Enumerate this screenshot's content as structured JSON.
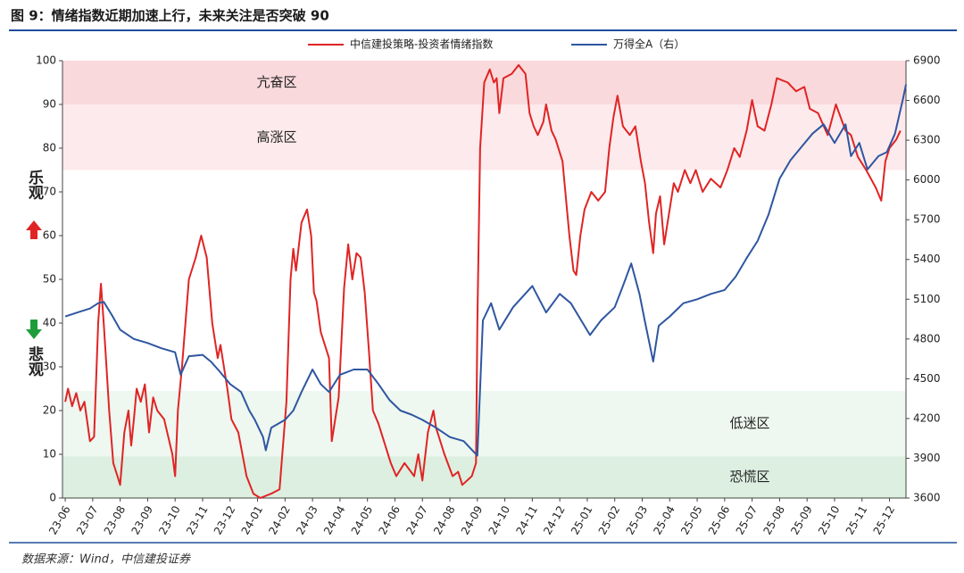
{
  "chart_data": {
    "type": "line",
    "title": "图 9：情绪指数近期加速上行，未来关注是否突破 90",
    "source": "数据来源：Wind，中信建投证券",
    "side_labels": [
      "乐观",
      "悲观"
    ],
    "xlim": [
      -0.1,
      30.6
    ],
    "xticks": [
      {
        "value": 0,
        "label": "23-06"
      },
      {
        "value": 1,
        "label": "23-07"
      },
      {
        "value": 2,
        "label": "23-08"
      },
      {
        "value": 3,
        "label": "23-09"
      },
      {
        "value": 4,
        "label": "23-10"
      },
      {
        "value": 5,
        "label": "23-11"
      },
      {
        "value": 6,
        "label": "23-12"
      },
      {
        "value": 7,
        "label": "24-01"
      },
      {
        "value": 8,
        "label": "24-02"
      },
      {
        "value": 9,
        "label": "24-03"
      },
      {
        "value": 10,
        "label": "24-04"
      },
      {
        "value": 11,
        "label": "24-05"
      },
      {
        "value": 12,
        "label": "24-06"
      },
      {
        "value": 13,
        "label": "24-07"
      },
      {
        "value": 14,
        "label": "24-08"
      },
      {
        "value": 15,
        "label": "24-09"
      },
      {
        "value": 16,
        "label": "24-10"
      },
      {
        "value": 17,
        "label": "24-11"
      },
      {
        "value": 18,
        "label": "24-12"
      },
      {
        "value": 19,
        "label": "25-01"
      },
      {
        "value": 20,
        "label": "25-02"
      },
      {
        "value": 21,
        "label": "25-03"
      },
      {
        "value": 22,
        "label": "25-04"
      },
      {
        "value": 23,
        "label": "25-05"
      },
      {
        "value": 24,
        "label": "25-06"
      },
      {
        "value": 25,
        "label": "25-07"
      },
      {
        "value": 26,
        "label": "25-08"
      },
      {
        "value": 27,
        "label": "25-09"
      },
      {
        "value": 28,
        "label": "25-10"
      },
      {
        "value": 29,
        "label": "25-11"
      },
      {
        "value": 30,
        "label": "25-12"
      }
    ],
    "ylim": [
      0,
      100
    ],
    "yticks": [
      0,
      10,
      20,
      30,
      40,
      50,
      60,
      70,
      80,
      90,
      100
    ],
    "y2lim": [
      3600,
      6900
    ],
    "y2ticks": [
      3600,
      3900,
      4200,
      4500,
      4800,
      5100,
      5400,
      5700,
      6000,
      6300,
      6600,
      6900
    ],
    "zones": [
      {
        "label": "亢奋区",
        "range": [
          90,
          100
        ],
        "color": "#fad9dc"
      },
      {
        "label": "高涨区",
        "range": [
          75,
          90
        ],
        "color": "#fdeaec"
      },
      {
        "label": "低迷区",
        "range": [
          9.5,
          24.5
        ],
        "color": "#eef7f0"
      },
      {
        "label": "恐慌区",
        "range": [
          0,
          9.5
        ],
        "color": "#dcefe0"
      }
    ],
    "series": [
      {
        "name": "中信建投策略-投资者情绪指数",
        "color": "#e02424",
        "x": [
          0,
          0.1,
          0.25,
          0.4,
          0.55,
          0.7,
          0.9,
          1.05,
          1.2,
          1.3,
          1.4,
          1.5,
          1.6,
          1.75,
          1.9,
          2.0,
          2.15,
          2.3,
          2.4,
          2.5,
          2.6,
          2.75,
          2.9,
          3.05,
          3.2,
          3.35,
          3.6,
          3.9,
          4.0,
          4.1,
          4.25,
          4.5,
          4.75,
          4.95,
          5.15,
          5.35,
          5.55,
          5.65,
          5.9,
          6.05,
          6.3,
          6.45,
          6.6,
          6.85,
          7.1,
          7.5,
          7.8,
          8.05,
          8.2,
          8.3,
          8.4,
          8.6,
          8.8,
          8.95,
          9.05,
          9.15,
          9.3,
          9.6,
          9.7,
          9.95,
          10.15,
          10.3,
          10.45,
          10.6,
          10.75,
          10.9,
          11.05,
          11.2,
          11.4,
          11.55,
          11.85,
          12.05,
          12.35,
          12.7,
          12.85,
          13.0,
          13.2,
          13.4,
          13.5,
          13.8,
          14.1,
          14.3,
          14.45,
          14.8,
          14.95,
          15.0,
          15.1,
          15.25,
          15.45,
          15.6,
          15.7,
          15.8,
          15.95,
          16.25,
          16.5,
          16.75,
          16.9,
          17.05,
          17.2,
          17.4,
          17.5,
          17.7,
          17.85,
          18.1,
          18.35,
          18.5,
          18.6,
          18.75,
          18.9,
          19.15,
          19.4,
          19.65,
          19.8,
          19.95,
          20.1,
          20.3,
          20.55,
          20.75,
          20.95,
          21.1,
          21.25,
          21.4,
          21.5,
          21.65,
          21.8,
          21.95,
          22.15,
          22.3,
          22.55,
          22.75,
          22.95,
          23.2,
          23.5,
          23.85,
          24.1,
          24.35,
          24.55,
          24.8,
          25.0,
          25.2,
          25.45,
          25.7,
          25.9,
          26.3,
          26.6,
          26.9,
          27.1,
          27.4,
          27.75,
          28.05,
          28.4,
          28.6,
          28.85,
          29.15,
          29.5,
          29.7,
          29.85,
          30.0,
          30.25,
          30.4
        ],
        "values": [
          22,
          25,
          21,
          24,
          20,
          22,
          13,
          14,
          40,
          49,
          40,
          30,
          20,
          8,
          5,
          3,
          15,
          20,
          12,
          18,
          25,
          22,
          26,
          15,
          23,
          20,
          18,
          10,
          5,
          20,
          30,
          50,
          55,
          60,
          55,
          40,
          32,
          35,
          25,
          18,
          15,
          10,
          5,
          1,
          0,
          1,
          2,
          22,
          50,
          57,
          52,
          63,
          66,
          60,
          47,
          45,
          38,
          32,
          13,
          23,
          48,
          58,
          50,
          56,
          55,
          47,
          34,
          20,
          17,
          14,
          8,
          5,
          8,
          5,
          10,
          4,
          15,
          20,
          16,
          10,
          5,
          6,
          3,
          5,
          8,
          40,
          80,
          95,
          98,
          95,
          96,
          88,
          96,
          97,
          99,
          97,
          88,
          85,
          83,
          86,
          90,
          84,
          82,
          77,
          60,
          52,
          51,
          60,
          66,
          70,
          68,
          70,
          80,
          87,
          92,
          85,
          83,
          85,
          77,
          72,
          63,
          56,
          65,
          69,
          58,
          64,
          72,
          70,
          75,
          72,
          75,
          70,
          73,
          71,
          75,
          80,
          78,
          84,
          91,
          85,
          84,
          90,
          96,
          95,
          93,
          94,
          89,
          88,
          83,
          90,
          84,
          83,
          78,
          75,
          71,
          68,
          77,
          80,
          82,
          84
        ]
      },
      {
        "name": "万得全A（右）",
        "color": "#2f56a0",
        "axis": "y2",
        "x": [
          0,
          0.3,
          0.6,
          0.9,
          1.2,
          1.4,
          1.7,
          2.0,
          2.5,
          3.0,
          3.5,
          4.0,
          4.2,
          4.5,
          5.0,
          5.3,
          5.6,
          6.0,
          6.4,
          6.7,
          6.9,
          7.2,
          7.3,
          7.5,
          8.0,
          8.3,
          8.6,
          9.0,
          9.3,
          9.6,
          10.0,
          10.5,
          11.0,
          11.4,
          11.8,
          12.2,
          12.6,
          13.0,
          13.5,
          14.0,
          14.5,
          15.0,
          15.2,
          15.5,
          15.8,
          16.3,
          17.0,
          17.5,
          18.0,
          18.4,
          19.1,
          19.5,
          20.0,
          20.3,
          20.6,
          20.9,
          21.1,
          21.4,
          21.6,
          22.0,
          22.5,
          23.0,
          23.5,
          24.0,
          24.4,
          24.8,
          25.2,
          25.6,
          26.0,
          26.4,
          26.8,
          27.2,
          27.6,
          28.0,
          28.4,
          28.6,
          28.9,
          29.2,
          29.6,
          29.9,
          30.2,
          30.5,
          30.6
        ],
        "values": [
          4970,
          4990,
          5010,
          5030,
          5070,
          5080,
          4980,
          4870,
          4800,
          4770,
          4730,
          4700,
          4530,
          4670,
          4680,
          4630,
          4560,
          4460,
          4400,
          4260,
          4190,
          4060,
          3960,
          4130,
          4190,
          4260,
          4400,
          4570,
          4460,
          4400,
          4530,
          4570,
          4570,
          4460,
          4340,
          4260,
          4230,
          4190,
          4130,
          4060,
          4030,
          3920,
          4940,
          5070,
          4870,
          5040,
          5200,
          5000,
          5140,
          5070,
          4830,
          4940,
          5040,
          5200,
          5370,
          5140,
          4930,
          4630,
          4900,
          4970,
          5070,
          5100,
          5140,
          5170,
          5270,
          5410,
          5540,
          5740,
          6010,
          6150,
          6250,
          6350,
          6420,
          6280,
          6420,
          6180,
          6280,
          6080,
          6180,
          6210,
          6350,
          6620,
          6720
        ]
      }
    ]
  }
}
